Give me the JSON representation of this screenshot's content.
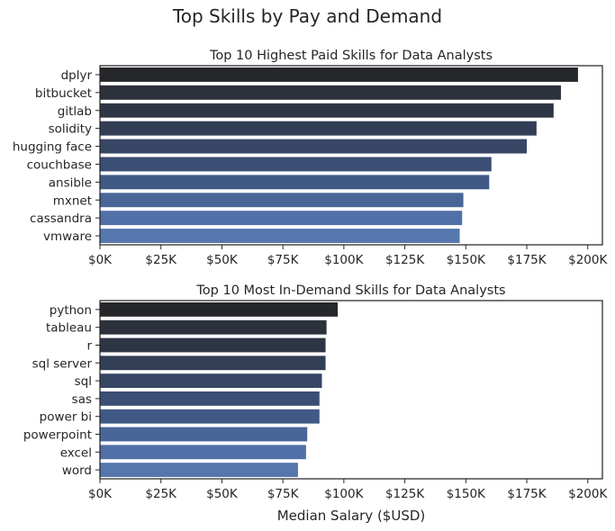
{
  "figure": {
    "suptitle": "Top Skills by Pay and Demand"
  },
  "chart_data": [
    {
      "type": "bar",
      "orientation": "horizontal",
      "title": "Top 10 Highest Paid Skills for Data Analysts",
      "xlabel": "",
      "ylabel": "",
      "categories": [
        "dplyr",
        "bitbucket",
        "gitlab",
        "solidity",
        "hugging face",
        "couchbase",
        "ansible",
        "mxnet",
        "cassandra",
        "vmware"
      ],
      "values": [
        196000,
        189000,
        186000,
        179000,
        175000,
        160500,
        159600,
        149000,
        148500,
        147500
      ],
      "xlim": [
        0,
        206000
      ],
      "xticks": [
        0,
        25000,
        50000,
        75000,
        100000,
        125000,
        150000,
        175000,
        200000
      ],
      "xtick_labels": [
        "$0K",
        "$25K",
        "$50K",
        "$75K",
        "$100K",
        "$125K",
        "$150K",
        "$175K",
        "$200K"
      ],
      "grid": false,
      "palette": "dark blue gradient (top darkest)",
      "colors": [
        "#25272b",
        "#2c313c",
        "#2e3646",
        "#323e55",
        "#364664",
        "#3b4e73",
        "#405a85",
        "#4a6698",
        "#5170a7",
        "#5677ad"
      ]
    },
    {
      "type": "bar",
      "orientation": "horizontal",
      "title": "Top 10 Most In-Demand Skills for Data Analysts",
      "xlabel": "Median Salary ($USD)",
      "ylabel": "",
      "categories": [
        "python",
        "tableau",
        "r",
        "sql server",
        "sql",
        "sas",
        "power bi",
        "powerpoint",
        "excel",
        "word"
      ],
      "values": [
        97500,
        92900,
        92500,
        92500,
        91000,
        90000,
        90000,
        85000,
        84500,
        81200
      ],
      "xlim": [
        0,
        206000
      ],
      "xticks": [
        0,
        25000,
        50000,
        75000,
        100000,
        125000,
        150000,
        175000,
        200000
      ],
      "xtick_labels": [
        "$0K",
        "$25K",
        "$50K",
        "$75K",
        "$100K",
        "$125K",
        "$150K",
        "$175K",
        "$200K"
      ],
      "grid": false,
      "palette": "dark blue gradient (top darkest)",
      "colors": [
        "#25272b",
        "#2c313c",
        "#2e3646",
        "#323e55",
        "#364664",
        "#3b4e73",
        "#405a85",
        "#4a6698",
        "#5170a7",
        "#5677ad"
      ]
    }
  ]
}
